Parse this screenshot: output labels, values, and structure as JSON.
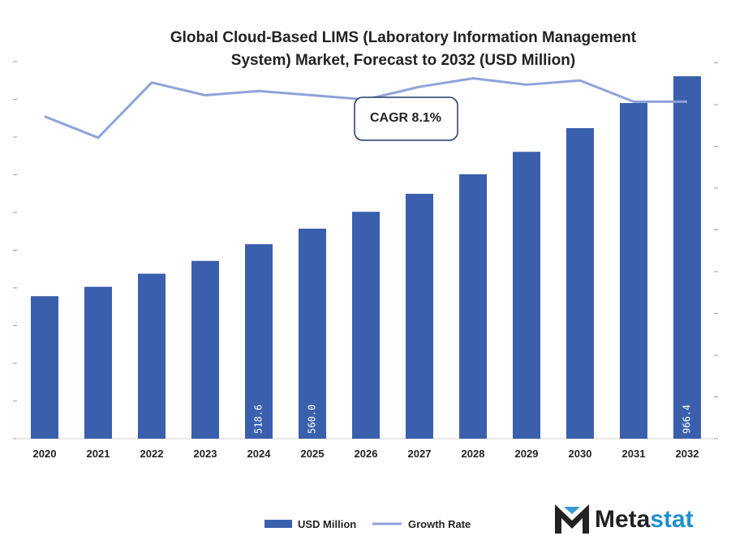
{
  "chart_data": {
    "type": "bar",
    "title_line1": "Global Cloud-Based LIMS (Laboratory Information Management",
    "title_line2": "System) Market, Forecast to 2032 (USD Million)",
    "categories": [
      "2020",
      "2021",
      "2022",
      "2023",
      "2024",
      "2025",
      "2026",
      "2027",
      "2028",
      "2029",
      "2030",
      "2031",
      "2032"
    ],
    "series": [
      {
        "name": "USD Million",
        "type": "bar",
        "color": "#3a5fad",
        "values": [
          380,
          405,
          440,
          474,
          518.6,
          560.0,
          605,
          653,
          705,
          765,
          828,
          895,
          966.4
        ],
        "labels": [
          "",
          "",
          "",
          "",
          "518.6",
          "560.0",
          "",
          "",
          "",
          "",
          "",
          "",
          "966.4"
        ]
      },
      {
        "name": "Growth Rate",
        "type": "line",
        "color": "#8ea3db",
        "values": [
          7.6,
          7.1,
          8.4,
          8.1,
          8.2,
          8.1,
          8.0,
          8.3,
          8.5,
          8.35,
          8.45,
          7.95,
          7.95
        ]
      }
    ],
    "y_left_range": [
      0,
      1040
    ],
    "y_right_range": [
      0,
      9.2
    ],
    "legend_position": "bottom-center",
    "grid": false,
    "annotation": "CAGR 8.1%"
  },
  "brand": {
    "name": "Metastat",
    "logo_icon": "metastat-m-logo-icon",
    "color_dark": "#222222",
    "color_blue": "#1f8fd1"
  }
}
